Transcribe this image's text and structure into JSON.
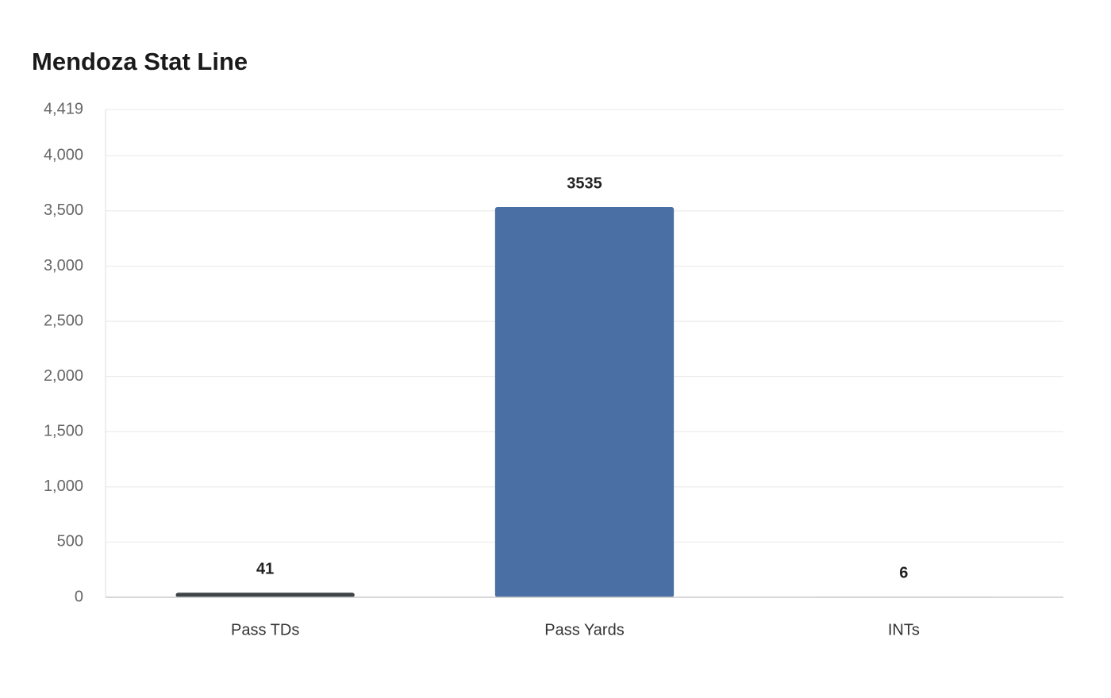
{
  "chart_data": {
    "type": "bar",
    "title": "Mendoza Stat Line",
    "categories": [
      "Pass TDs",
      "Pass Yards",
      "INTs"
    ],
    "values": [
      41,
      3535,
      6
    ],
    "colors": [
      "#3d4347",
      "#4a6fa5",
      "#e0e0e0"
    ],
    "ylim": [
      0,
      4419
    ],
    "yticks": [
      0,
      500,
      {
        "value": 1000,
        "label": "1,000"
      },
      {
        "value": 1500,
        "label": "1,500"
      },
      {
        "value": 2000,
        "label": "2,000"
      },
      {
        "value": 2500,
        "label": "2,500"
      },
      {
        "value": 3000,
        "label": "3,000"
      },
      {
        "value": 3500,
        "label": "3,500"
      },
      {
        "value": 4000,
        "label": "4,000"
      },
      {
        "value": 4419,
        "label": "4,419"
      }
    ],
    "grid": true
  }
}
